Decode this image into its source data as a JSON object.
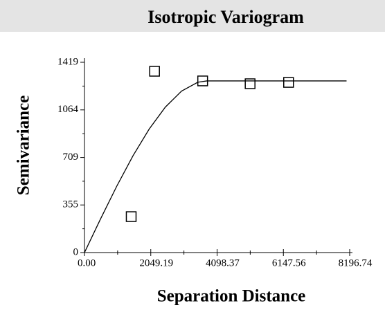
{
  "chart_data": {
    "type": "scatter",
    "title": "Isotropic Variogram",
    "xlabel": "Separation Distance",
    "ylabel": "Semivariance",
    "xlim": [
      0,
      8196.74
    ],
    "ylim": [
      0,
      1419
    ],
    "xticks": [
      {
        "value": 0,
        "label": "0.00"
      },
      2049.19,
      4098.37,
      6147.56,
      8196.74
    ],
    "yticks": [
      0,
      355,
      709,
      1064,
      1419
    ],
    "series": [
      {
        "mode": "markers",
        "color": "#000000",
        "x": [
          1444,
          2166,
          3653,
          5119,
          6308
        ],
        "values": [
          268,
          1352,
          1280,
          1259,
          1269
        ]
      },
      {
        "mode": "line",
        "color": "#000000",
        "x": [
          0,
          500,
          1000,
          1500,
          2000,
          2500,
          3000,
          3500,
          3780,
          8100
        ],
        "values": [
          0,
          252.5,
          496,
          722,
          921,
          1085,
          1204,
          1270,
          1280,
          1280
        ]
      }
    ]
  }
}
